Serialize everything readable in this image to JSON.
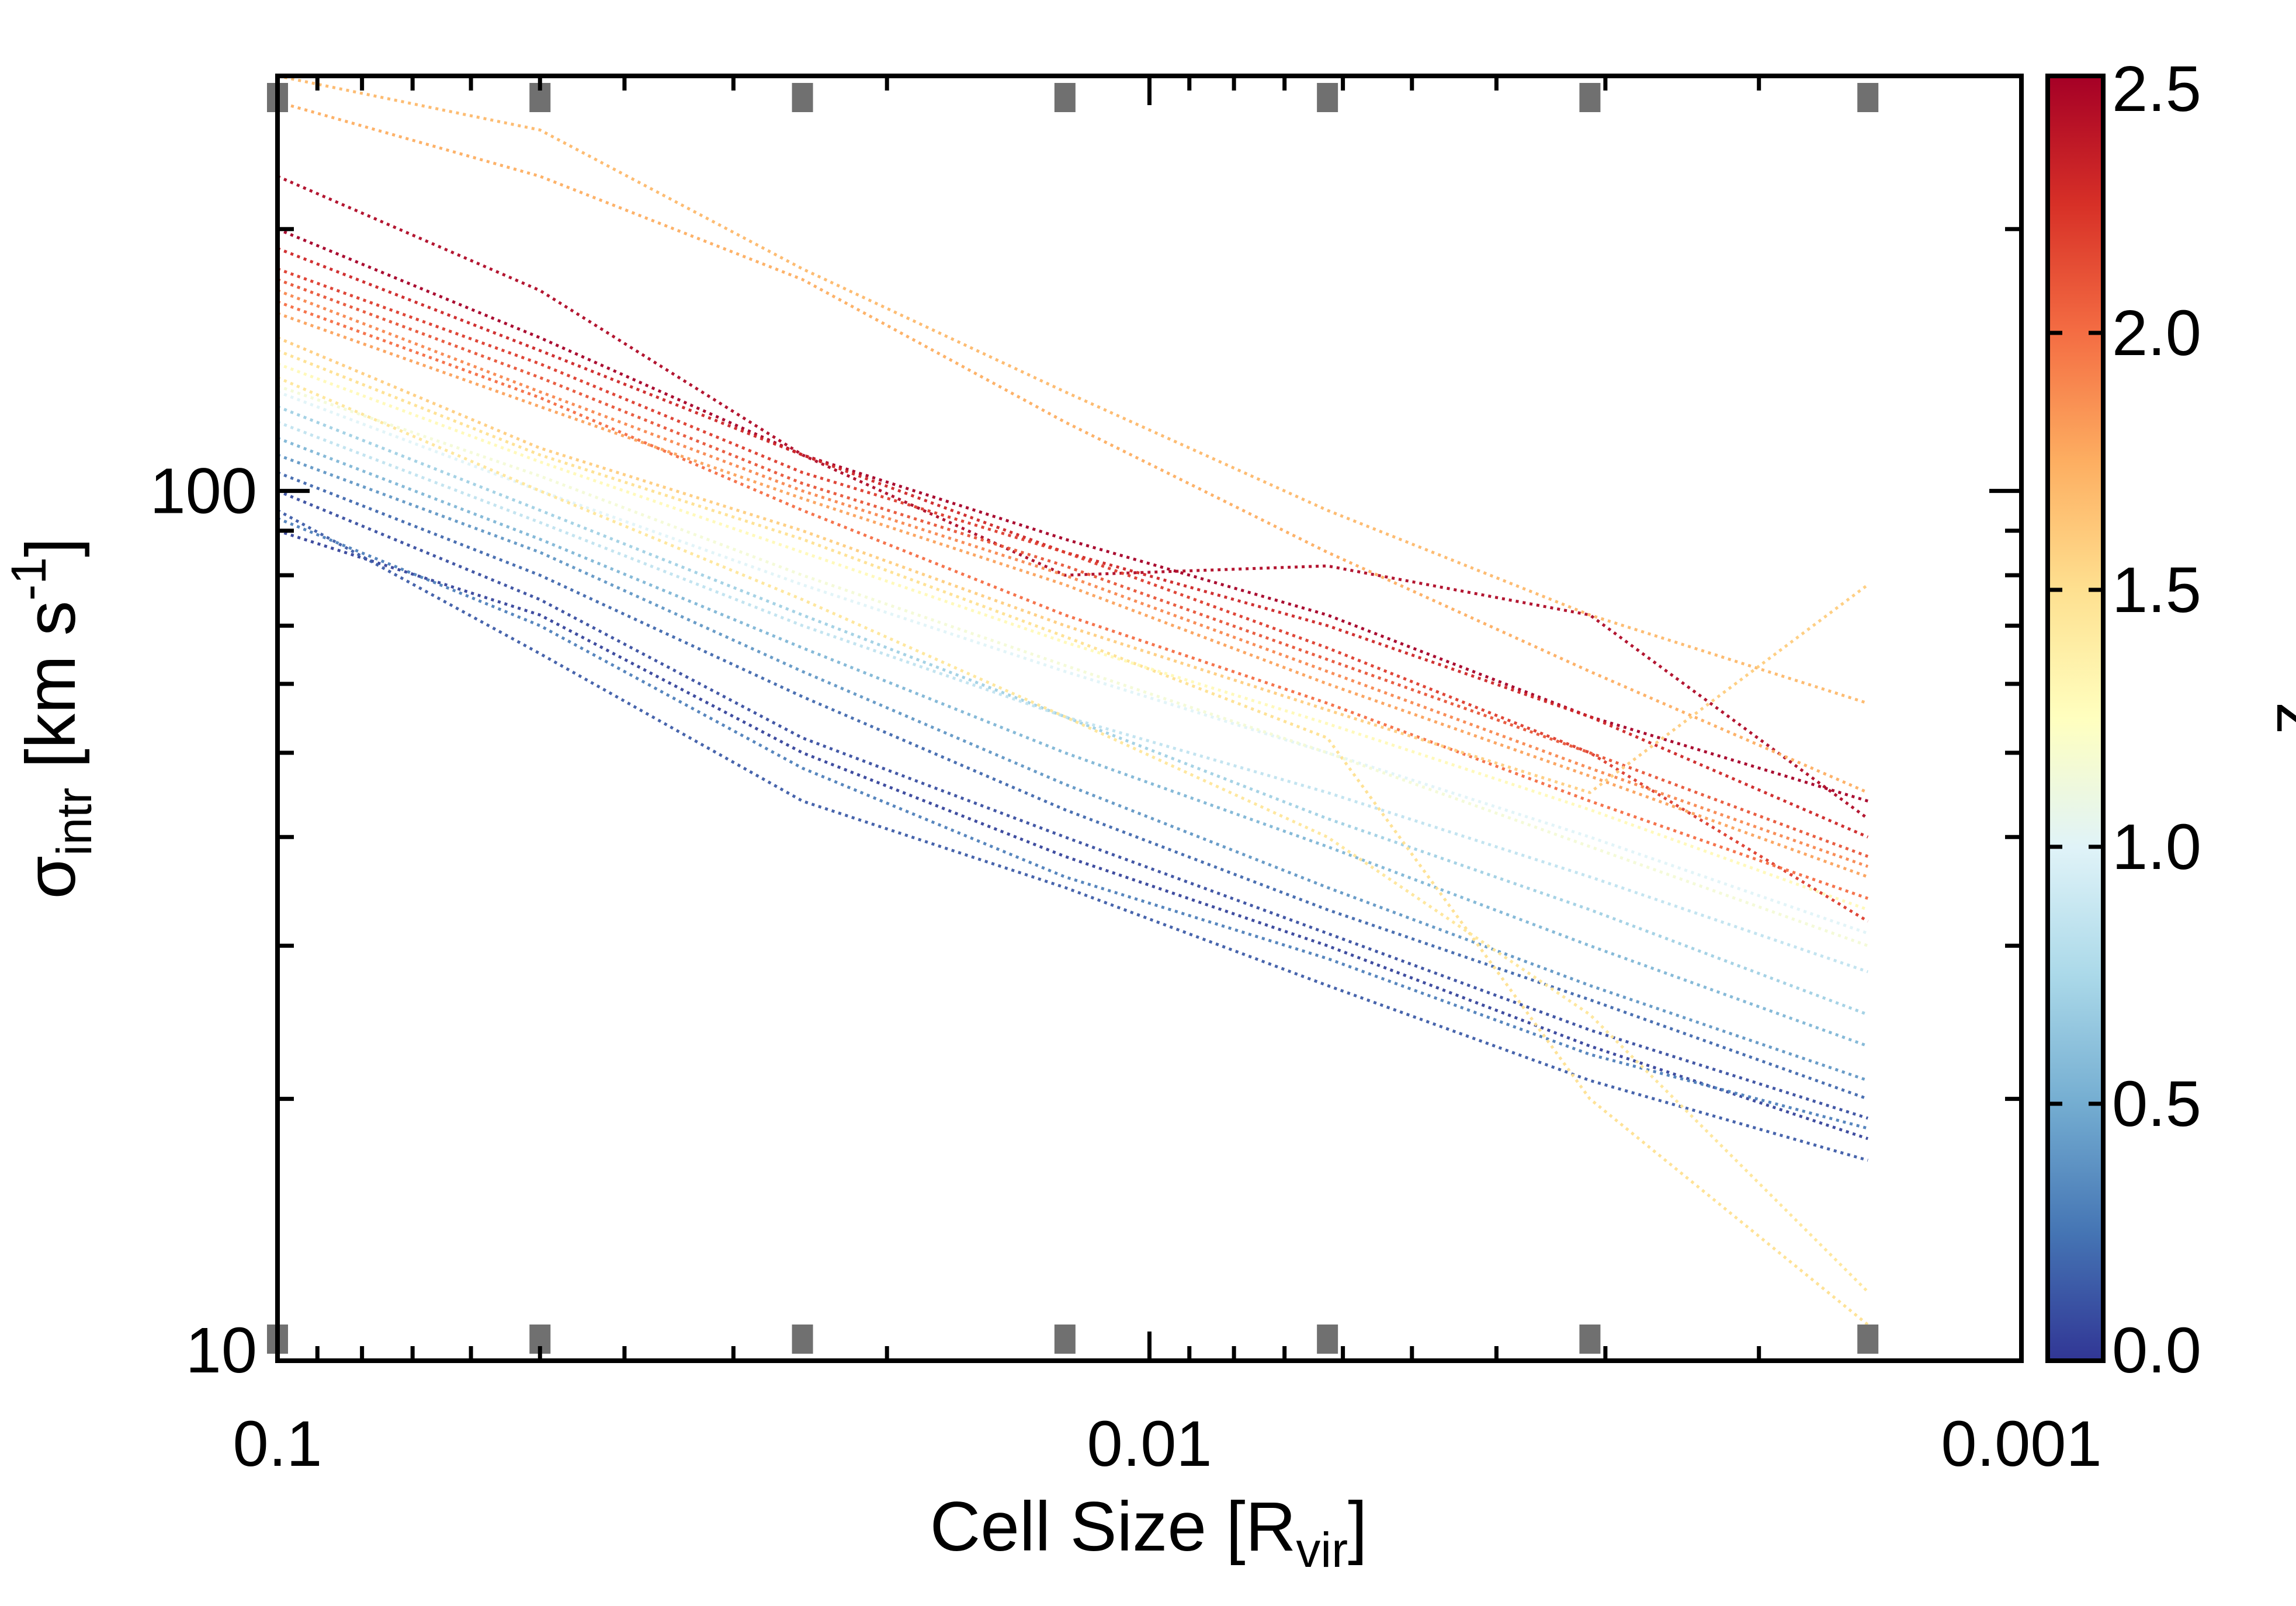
{
  "chart_data": {
    "type": "line",
    "title": "",
    "xlabel": {
      "main": "Cell Size [R",
      "sub": "vir",
      "tail": "]"
    },
    "ylabel": {
      "main": "σ",
      "sub": "intr",
      "tail": " [km s",
      "sup": "-1",
      "end": "]"
    },
    "x_scale": "log",
    "y_scale": "log",
    "x_reversed": true,
    "xlim": [
      0.1,
      0.001
    ],
    "ylim": [
      10,
      300
    ],
    "x_ticks": [
      {
        "value": 0.1,
        "label": "0.1"
      },
      {
        "value": 0.01,
        "label": "0.01"
      },
      {
        "value": 0.001,
        "label": "0.001"
      }
    ],
    "y_ticks": [
      {
        "value": 10,
        "label": "10"
      },
      {
        "value": 100,
        "label": "100"
      }
    ],
    "x": [
      0.1,
      0.05,
      0.025,
      0.0125,
      0.00625,
      0.003125,
      0.0015
    ],
    "colorbar": {
      "label": "z",
      "range": [
        0.0,
        2.5
      ],
      "ticks": [
        "0.0",
        "0.5",
        "1.0",
        "1.5",
        "2.0",
        "2.5"
      ],
      "colors": [
        "#313695",
        "#4575b4",
        "#74add1",
        "#abd9e9",
        "#e0f3f8",
        "#ffffbf",
        "#fee090",
        "#fdae61",
        "#f46d43",
        "#d73027",
        "#a50026"
      ]
    },
    "series_summary": "Several hundred dotted lines, one per snapshot, coloured by redshift z; sigma_intr decreases with decreasing cell size.",
    "series": [
      {
        "z": 0.05,
        "values": [
          90,
          72,
          50,
          38,
          30,
          23,
          18
        ]
      },
      {
        "z": 0.1,
        "values": [
          100,
          75,
          52,
          40,
          31,
          24,
          19
        ]
      },
      {
        "z": 0.15,
        "values": [
          95,
          65,
          44,
          35,
          27,
          21,
          17
        ]
      },
      {
        "z": 0.2,
        "values": [
          105,
          80,
          58,
          43,
          33,
          26,
          20
        ]
      },
      {
        "z": 0.3,
        "values": [
          93,
          70,
          48,
          36,
          29,
          22.5,
          18.5
        ]
      },
      {
        "z": 0.4,
        "values": [
          110,
          85,
          62,
          46,
          35,
          27,
          21
        ]
      },
      {
        "z": 0.55,
        "values": [
          115,
          88,
          66,
          50,
          39,
          30,
          23
        ]
      },
      {
        "z": 0.7,
        "values": [
          125,
          95,
          72,
          55,
          42,
          33,
          25
        ]
      },
      {
        "z": 0.85,
        "values": [
          120,
          92,
          70,
          55,
          45,
          36,
          28
        ]
      },
      {
        "z": 1.0,
        "values": [
          130,
          100,
          78,
          62,
          50,
          40,
          31
        ]
      },
      {
        "z": 1.15,
        "values": [
          132,
          104,
          80,
          63,
          50,
          39,
          30
        ]
      },
      {
        "z": 1.3,
        "values": [
          140,
          108,
          85,
          67,
          54,
          43,
          33
        ]
      },
      {
        "z": 1.45,
        "values": [
          135,
          100,
          75,
          55,
          40,
          25,
          12
        ]
      },
      {
        "z": 1.5,
        "values": [
          145,
          110,
          88,
          68,
          52,
          20,
          11
        ]
      },
      {
        "z": 1.6,
        "values": [
          150,
          112,
          90,
          70,
          56,
          45,
          78
        ]
      },
      {
        "z": 1.7,
        "values": [
          300,
          260,
          180,
          130,
          95,
          72,
          57
        ]
      },
      {
        "z": 1.75,
        "values": [
          280,
          230,
          175,
          120,
          85,
          62,
          45
        ]
      },
      {
        "z": 1.8,
        "values": [
          160,
          125,
          98,
          78,
          60,
          47,
          36
        ]
      },
      {
        "z": 1.9,
        "values": [
          170,
          130,
          100,
          80,
          62,
          48,
          37
        ]
      },
      {
        "z": 2.0,
        "values": [
          165,
          128,
          95,
          72,
          57,
          44,
          34
        ]
      },
      {
        "z": 2.1,
        "values": [
          175,
          135,
          102,
          82,
          64,
          50,
          38
        ]
      },
      {
        "z": 2.2,
        "values": [
          180,
          140,
          105,
          85,
          66,
          50,
          32
        ]
      },
      {
        "z": 2.3,
        "values": [
          190,
          145,
          110,
          85,
          70,
          55,
          40
        ]
      },
      {
        "z": 2.45,
        "values": [
          230,
          170,
          110,
          80,
          82,
          72,
          42
        ]
      },
      {
        "z": 2.5,
        "values": [
          200,
          150,
          110,
          88,
          72,
          55,
          44
        ]
      }
    ]
  }
}
